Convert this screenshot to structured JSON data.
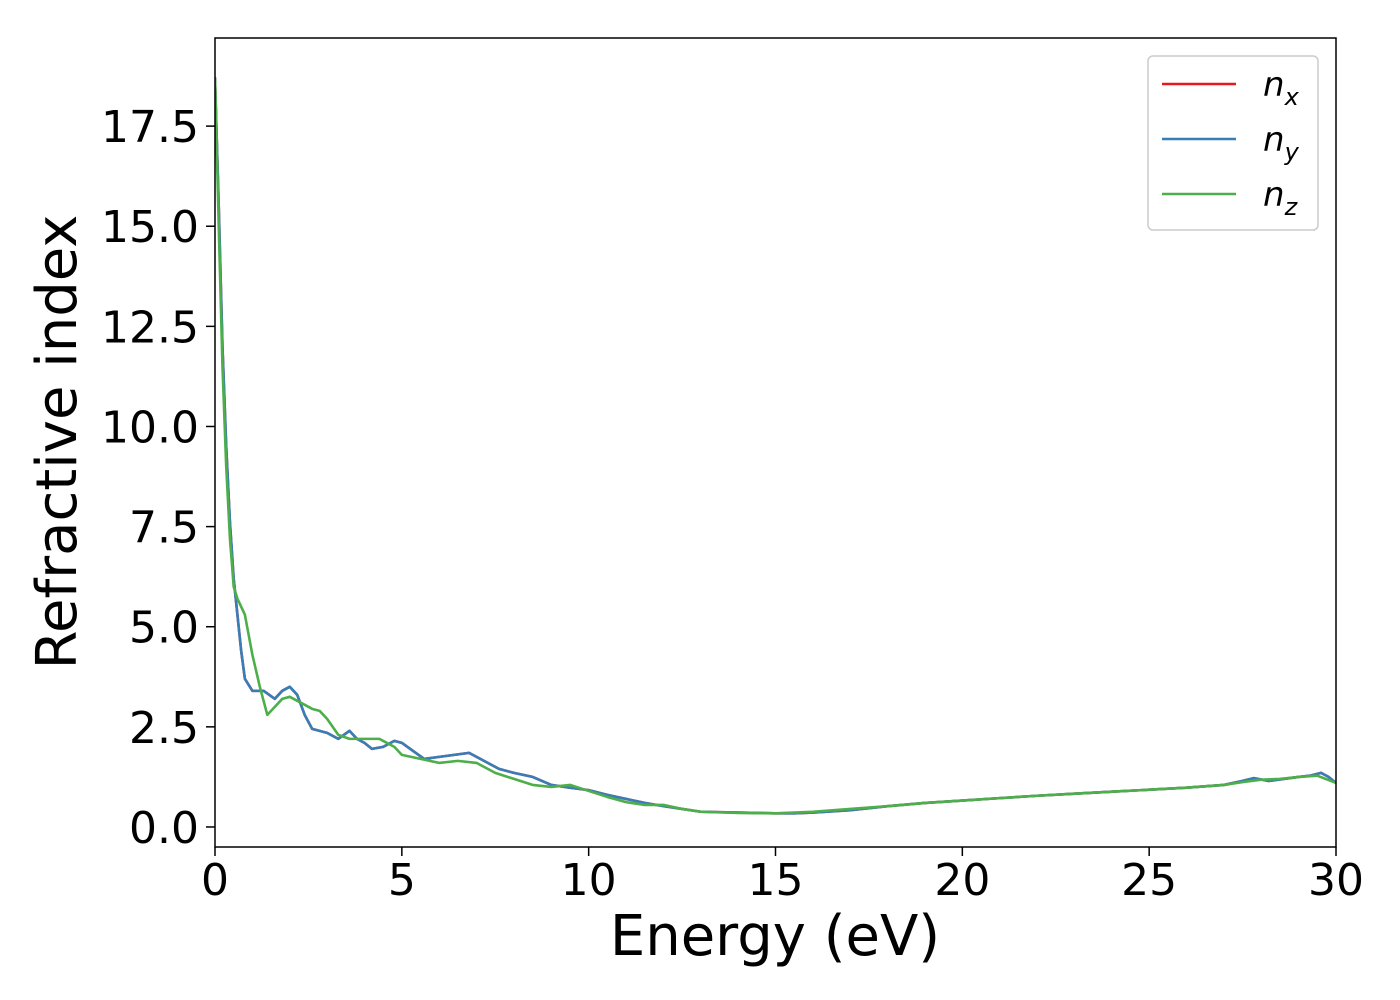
{
  "chart_data": {
    "type": "line",
    "title": "",
    "xlabel": "Energy (eV)",
    "ylabel": "Refractive index",
    "xlim": [
      0,
      30
    ],
    "ylim": [
      -0.5,
      19.7
    ],
    "xticks": [
      0,
      5,
      10,
      15,
      20,
      25,
      30
    ],
    "xtick_labels": [
      "0",
      "5",
      "10",
      "15",
      "20",
      "25",
      "30"
    ],
    "yticks": [
      0,
      2.5,
      5,
      7.5,
      10,
      12.5,
      15,
      17.5
    ],
    "ytick_labels": [
      "0.0",
      "2.5",
      "5.0",
      "7.5",
      "10.0",
      "12.5",
      "15.0",
      "17.5"
    ],
    "grid": false,
    "legend_position": "top-right",
    "series": [
      {
        "name": "n_x",
        "legend_base": "n",
        "legend_sub": "x",
        "color": "#e41a1c",
        "x": [
          0,
          0.1,
          0.2,
          0.3,
          0.4,
          0.5,
          0.6,
          0.7,
          0.8,
          1.0,
          1.3,
          1.6,
          1.8,
          2.0,
          2.2,
          2.4,
          2.6,
          2.8,
          3.0,
          3.3,
          3.6,
          3.8,
          4.0,
          4.2,
          4.5,
          4.8,
          5.0,
          5.3,
          5.6,
          6.0,
          6.4,
          6.8,
          7.2,
          7.6,
          8.0,
          8.5,
          9.0,
          9.5,
          10.0,
          10.5,
          11.0,
          11.5,
          12.0,
          12.5,
          13.0,
          14.0,
          15.0,
          15.5,
          16.0,
          17.0,
          18.0,
          19.0,
          20.0,
          21.0,
          22.0,
          23.0,
          24.0,
          25.0,
          26.0,
          27.0,
          27.5,
          27.8,
          28.2,
          28.6,
          29.0,
          29.3,
          29.6,
          29.8,
          30.0
        ],
        "y": [
          18.7,
          15.5,
          12.0,
          9.5,
          7.6,
          6.2,
          5.3,
          4.4,
          3.7,
          3.4,
          3.4,
          3.2,
          3.4,
          3.5,
          3.3,
          2.8,
          2.45,
          2.4,
          2.35,
          2.2,
          2.4,
          2.2,
          2.1,
          1.95,
          2.0,
          2.15,
          2.1,
          1.9,
          1.7,
          1.75,
          1.8,
          1.85,
          1.65,
          1.45,
          1.35,
          1.25,
          1.05,
          0.98,
          0.92,
          0.8,
          0.7,
          0.6,
          0.52,
          0.45,
          0.38,
          0.36,
          0.34,
          0.34,
          0.36,
          0.42,
          0.52,
          0.6,
          0.66,
          0.72,
          0.78,
          0.83,
          0.88,
          0.93,
          0.98,
          1.05,
          1.15,
          1.22,
          1.15,
          1.2,
          1.25,
          1.28,
          1.35,
          1.25,
          1.1
        ]
      },
      {
        "name": "n_y",
        "legend_base": "n",
        "legend_sub": "y",
        "color": "#377eb8",
        "x": [
          0,
          0.1,
          0.2,
          0.3,
          0.4,
          0.5,
          0.6,
          0.7,
          0.8,
          1.0,
          1.3,
          1.6,
          1.8,
          2.0,
          2.2,
          2.4,
          2.6,
          2.8,
          3.0,
          3.3,
          3.6,
          3.8,
          4.0,
          4.2,
          4.5,
          4.8,
          5.0,
          5.3,
          5.6,
          6.0,
          6.4,
          6.8,
          7.2,
          7.6,
          8.0,
          8.5,
          9.0,
          9.5,
          10.0,
          10.5,
          11.0,
          11.5,
          12.0,
          12.5,
          13.0,
          14.0,
          15.0,
          15.5,
          16.0,
          17.0,
          18.0,
          19.0,
          20.0,
          21.0,
          22.0,
          23.0,
          24.0,
          25.0,
          26.0,
          27.0,
          27.5,
          27.8,
          28.2,
          28.6,
          29.0,
          29.3,
          29.6,
          29.8,
          30.0
        ],
        "y": [
          18.7,
          15.5,
          12.0,
          9.5,
          7.6,
          6.2,
          5.3,
          4.4,
          3.7,
          3.4,
          3.4,
          3.2,
          3.4,
          3.5,
          3.3,
          2.8,
          2.45,
          2.4,
          2.35,
          2.2,
          2.4,
          2.2,
          2.1,
          1.95,
          2.0,
          2.15,
          2.1,
          1.9,
          1.7,
          1.75,
          1.8,
          1.85,
          1.65,
          1.45,
          1.35,
          1.25,
          1.05,
          0.98,
          0.92,
          0.8,
          0.7,
          0.6,
          0.52,
          0.45,
          0.38,
          0.36,
          0.34,
          0.34,
          0.36,
          0.42,
          0.52,
          0.6,
          0.66,
          0.72,
          0.78,
          0.83,
          0.88,
          0.93,
          0.98,
          1.05,
          1.15,
          1.22,
          1.15,
          1.2,
          1.25,
          1.28,
          1.35,
          1.25,
          1.1
        ]
      },
      {
        "name": "n_z",
        "legend_base": "n",
        "legend_sub": "z",
        "color": "#4daf4a",
        "x": [
          0,
          0.1,
          0.2,
          0.3,
          0.4,
          0.5,
          0.6,
          0.8,
          1.0,
          1.2,
          1.4,
          1.6,
          1.8,
          2.0,
          2.3,
          2.6,
          2.8,
          3.0,
          3.3,
          3.6,
          4.0,
          4.4,
          4.8,
          5.0,
          5.5,
          6.0,
          6.5,
          7.0,
          7.5,
          8.0,
          8.5,
          9.0,
          9.5,
          10.0,
          10.5,
          11.0,
          11.5,
          12.0,
          12.5,
          13.0,
          14.0,
          15.0,
          16.0,
          17.0,
          18.0,
          19.0,
          20.0,
          21.0,
          22.0,
          23.0,
          24.0,
          25.0,
          26.0,
          27.0,
          27.5,
          28.0,
          28.5,
          29.0,
          29.5,
          30.0
        ],
        "y": [
          18.7,
          15.0,
          11.5,
          9.0,
          7.2,
          6.0,
          5.7,
          5.3,
          4.3,
          3.5,
          2.8,
          3.0,
          3.2,
          3.25,
          3.1,
          2.95,
          2.9,
          2.7,
          2.3,
          2.2,
          2.2,
          2.2,
          2.0,
          1.8,
          1.7,
          1.6,
          1.65,
          1.6,
          1.35,
          1.2,
          1.05,
          1.0,
          1.05,
          0.9,
          0.75,
          0.62,
          0.55,
          0.55,
          0.45,
          0.38,
          0.35,
          0.34,
          0.38,
          0.45,
          0.52,
          0.6,
          0.66,
          0.72,
          0.78,
          0.83,
          0.88,
          0.93,
          0.98,
          1.05,
          1.12,
          1.18,
          1.2,
          1.25,
          1.28,
          1.1
        ]
      }
    ]
  }
}
